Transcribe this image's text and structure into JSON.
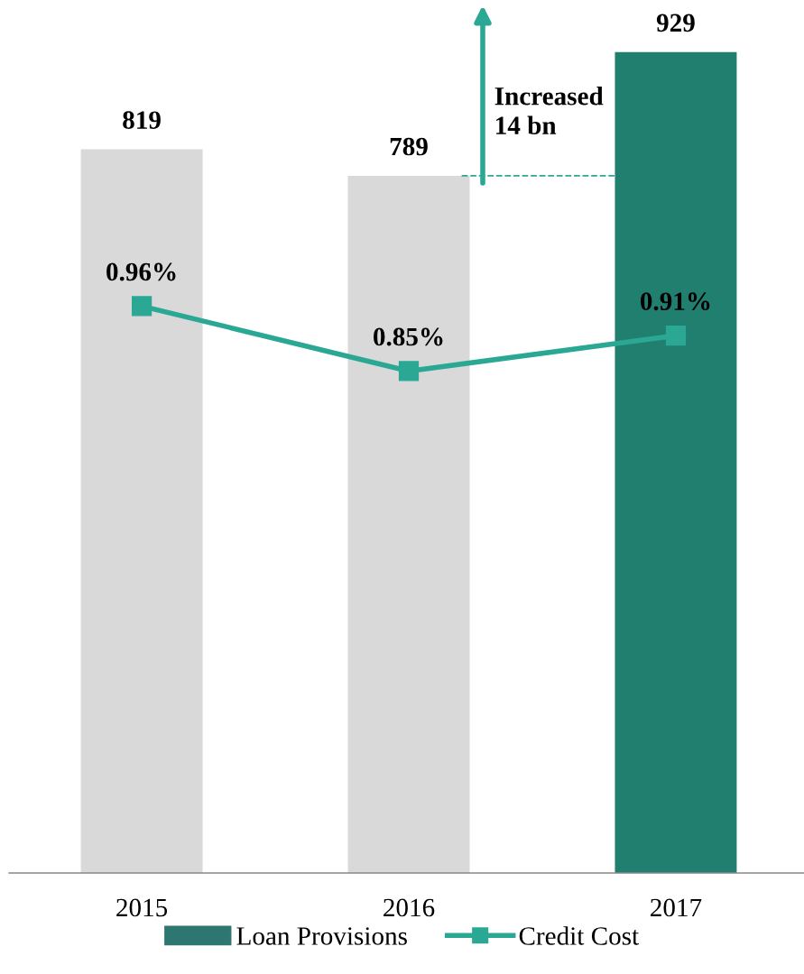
{
  "chart_data": {
    "type": "bar",
    "categories": [
      "2015",
      "2016",
      "2017"
    ],
    "series": [
      {
        "name": "Loan Provisions",
        "color": "#2e7670",
        "colors": [
          "#d9d9d9",
          "#d9d9d9",
          "#217f70"
        ],
        "values": [
          819,
          789,
          929
        ],
        "value_labels": [
          "819",
          "789",
          "929"
        ]
      },
      {
        "name": "Credit Cost",
        "type": "line",
        "axis": "y2",
        "color": "#2aa894",
        "values": [
          0.96,
          0.85,
          0.91
        ],
        "value_labels": [
          "0.96%",
          "0.85%",
          "0.91%"
        ],
        "marker": "square"
      }
    ],
    "tick_labels": "x",
    "grid": false,
    "legend": "bottom",
    "ref_lines": [
      {
        "axis": "y",
        "value": 789,
        "color": "#2aa894",
        "line_style": "dashed"
      }
    ],
    "annotations": [
      "Increased\n14 bn"
    ]
  }
}
